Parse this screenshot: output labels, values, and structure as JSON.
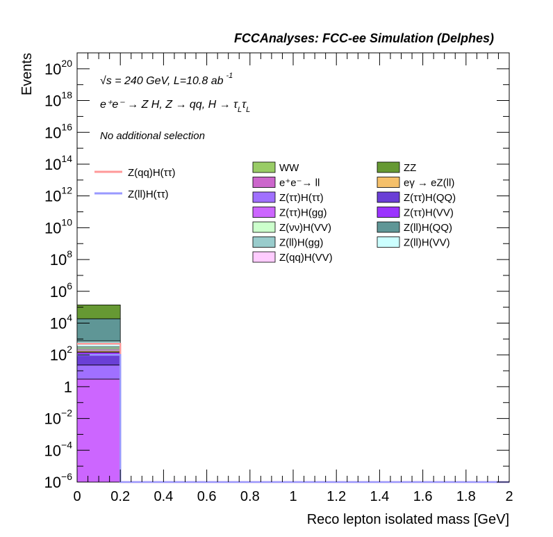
{
  "chart_data": {
    "type": "bar",
    "title": "FCCAnalyses: FCC-ee Simulation (Delphes)",
    "xlabel": "Reco lepton isolated mass [GeV]",
    "ylabel": "Events",
    "xlim": [
      0,
      2
    ],
    "ylim": [
      1e-06,
      1e+21
    ],
    "yscale": "log",
    "x_ticks": [
      "0",
      "0.2",
      "0.4",
      "0.6",
      "0.8",
      "1",
      "1.2",
      "1.4",
      "1.6",
      "1.8",
      "2"
    ],
    "y_ticks": [
      {
        "base": "10",
        "exp": "20"
      },
      {
        "base": "10",
        "exp": "18"
      },
      {
        "base": "10",
        "exp": "16"
      },
      {
        "base": "10",
        "exp": "14"
      },
      {
        "base": "10",
        "exp": "12"
      },
      {
        "base": "10",
        "exp": "10"
      },
      {
        "base": "10",
        "exp": "8"
      },
      {
        "base": "10",
        "exp": "6"
      },
      {
        "base": "10",
        "exp": "4"
      },
      {
        "base": "10",
        "exp": "2"
      },
      {
        "base": "1",
        "exp": ""
      },
      {
        "base": "10",
        "exp": "−2"
      },
      {
        "base": "10",
        "exp": "−4"
      },
      {
        "base": "10",
        "exp": "−6"
      }
    ],
    "annotations": {
      "energy": "√s = 240 GeV, L=10.8 ab",
      "energy_sup": "-1",
      "process_main": "e⁺e⁻ → Z H, Z → qq, H → τ",
      "process_sub1": "L",
      "process_tau2": "τ",
      "process_sub2": "L",
      "selection": "No additional selection"
    },
    "bin": {
      "x_low": 0,
      "x_high": 0.2
    },
    "stack": [
      {
        "name": "Z(ττ)H(gg)",
        "value": 3,
        "color": "#cc66ff"
      },
      {
        "name": "Z(ττ)H(ττ)",
        "value": 20,
        "color": "#a070ff"
      },
      {
        "name": "Z(ττ)H(QQ)",
        "value": 80,
        "color": "#6a3fd6"
      },
      {
        "name": "Z(ττ)H(VV)",
        "value": 40,
        "color": "#9b33ff"
      },
      {
        "name": "eγ → eZ(ll)",
        "value": 30,
        "color": "#f5c06a"
      },
      {
        "name": "Z(qq)H(VV)",
        "value": 60,
        "color": "#ffccff"
      },
      {
        "name": "Z(νν)H(VV)",
        "value": 80,
        "color": "#ccffcc"
      },
      {
        "name": "Z(ll)H(VV)",
        "value": 150,
        "color": "#ccffff"
      },
      {
        "name": "Z(ll)H(gg)",
        "value": 300,
        "color": "#99cccc"
      },
      {
        "name": "Z(ll)H(QQ)",
        "value": 18000,
        "color": "#5f9696"
      },
      {
        "name": "ZZ",
        "value": 120000,
        "color": "#669933"
      }
    ],
    "signal": [
      {
        "name": "Z(qq)H(ττ)",
        "value": 500,
        "color": "#ff9999"
      },
      {
        "name": "Z(ll)H(ττ)",
        "value": 100,
        "color": "#9999ff"
      }
    ],
    "legend_signal": [
      {
        "name": "Z(qq)H(ττ)",
        "color": "#ff9999"
      },
      {
        "name": "Z(ll)H(ττ)",
        "color": "#9999ff"
      }
    ],
    "legend_backgrounds": [
      {
        "name": "WW",
        "color": "#99cc66"
      },
      {
        "name": "ZZ",
        "color": "#669933"
      },
      {
        "name": "e⁺e⁻→ ll",
        "color": "#cc66cc"
      },
      {
        "name": "eγ → eZ(ll)",
        "color": "#f5c06a"
      },
      {
        "name": "Z(ττ)H(ττ)",
        "color": "#a070ff"
      },
      {
        "name": "Z(ττ)H(QQ)",
        "color": "#6a3fd6"
      },
      {
        "name": "Z(ττ)H(gg)",
        "color": "#cc66ff"
      },
      {
        "name": "Z(ττ)H(VV)",
        "color": "#9b33ff"
      },
      {
        "name": "Z(νν)H(VV)",
        "color": "#ccffcc"
      },
      {
        "name": "Z(ll)H(QQ)",
        "color": "#5f9696"
      },
      {
        "name": "Z(ll)H(gg)",
        "color": "#99cccc"
      },
      {
        "name": "Z(ll)H(VV)",
        "color": "#ccffff"
      },
      {
        "name": "Z(qq)H(VV)",
        "color": "#ffccff"
      }
    ],
    "grid": false,
    "legend_position": "top-right"
  }
}
